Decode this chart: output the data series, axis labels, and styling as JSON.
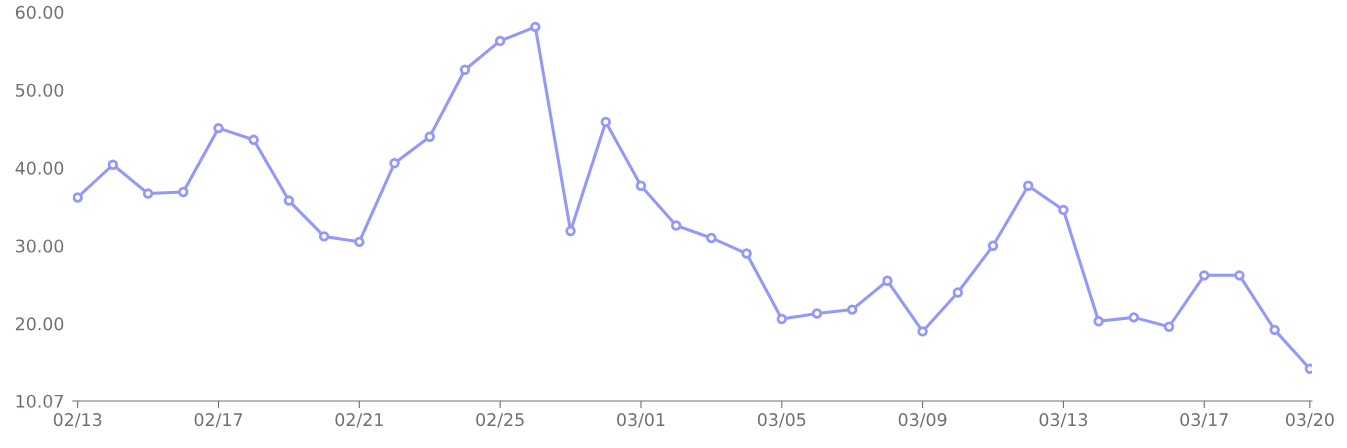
{
  "chart_data": {
    "type": "line",
    "categories": [
      "02/13",
      null,
      null,
      null,
      "02/17",
      null,
      null,
      null,
      "02/21",
      null,
      null,
      null,
      "02/25",
      null,
      null,
      null,
      "03/01",
      null,
      null,
      null,
      "03/05",
      null,
      null,
      null,
      "03/09",
      null,
      null,
      null,
      "03/13",
      null,
      null,
      null,
      "03/17",
      null,
      null,
      "03/20"
    ],
    "series": [
      {
        "color": "#9499f7",
        "values": [
          36.2,
          40.4,
          36.7,
          36.9,
          45.1,
          43.6,
          35.8,
          31.2,
          30.5,
          40.6,
          44.0,
          52.6,
          56.3,
          58.1,
          31.9,
          45.9,
          37.7,
          32.6,
          31.0,
          29.0,
          20.6,
          21.3,
          21.8,
          25.5,
          19.0,
          24.0,
          30.0,
          37.7,
          34.6,
          20.3,
          20.8,
          19.6,
          26.2,
          26.2,
          19.2,
          14.2
        ]
      }
    ],
    "ylim": [
      10.07,
      60
    ],
    "yticks": [
      10.07,
      {
        "value": 20,
        "label": "20.00"
      },
      {
        "value": 30,
        "label": "30.00"
      },
      {
        "value": 40,
        "label": "40.00"
      },
      {
        "value": 50,
        "label": "50.00"
      },
      {
        "value": 60,
        "label": "60.00"
      }
    ],
    "marker": "circle",
    "line_style": "solid",
    "grid": false,
    "legend": false
  }
}
